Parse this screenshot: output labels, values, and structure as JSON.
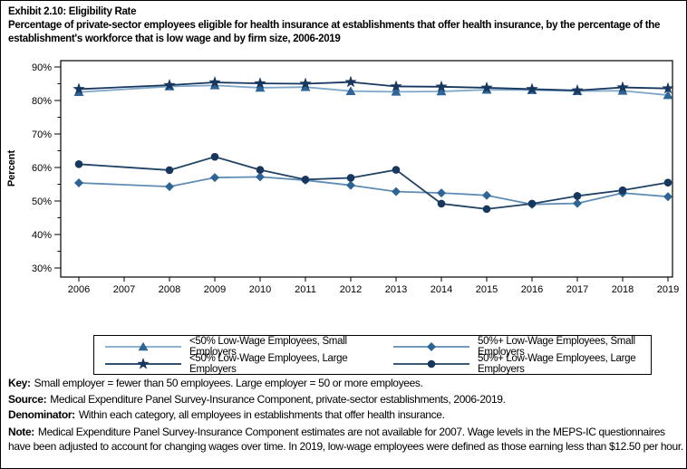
{
  "header": {
    "title": "Exhibit 2.10: Eligibility Rate",
    "subtitle": "Percentage of private-sector employees eligible for health insurance at establishments that offer health insurance, by the percentage of the establishment's workforce that is low wage and by firm size, 2006-2019"
  },
  "chart_data": {
    "type": "line",
    "title": "Eligibility Rate",
    "xlabel": "",
    "ylabel": "Percent",
    "ylim": [
      30,
      90
    ],
    "y_ticks": [
      30,
      40,
      50,
      60,
      70,
      80,
      90
    ],
    "y_tick_suffix": "%",
    "y_minor_tick_step": 5,
    "grid": false,
    "legend_position": "bottom",
    "axis_years": [
      2006,
      2007,
      2008,
      2009,
      2010,
      2011,
      2012,
      2013,
      2014,
      2015,
      2016,
      2017,
      2018,
      2019
    ],
    "missing_years": [
      2007
    ],
    "x": [
      2006,
      2008,
      2009,
      2010,
      2011,
      2012,
      2013,
      2014,
      2015,
      2016,
      2017,
      2018,
      2019
    ],
    "series": [
      {
        "name": "<50% Low-Wage Employees, Small Employers",
        "marker": "triangle",
        "marker_color": "#2E6496",
        "line_color": "#7EA6C8",
        "values": [
          82.5,
          84.2,
          84.5,
          83.8,
          84.0,
          82.8,
          82.6,
          82.7,
          83.2,
          83.1,
          82.8,
          82.9,
          81.6
        ]
      },
      {
        "name": "<50% Low-Wage Employees, Large Employers",
        "marker": "star",
        "marker_color": "#17375E",
        "line_color": "#17375E",
        "values": [
          83.4,
          84.6,
          85.4,
          85.1,
          85.0,
          85.5,
          84.2,
          84.1,
          83.8,
          83.4,
          83.0,
          83.9,
          83.6
        ]
      },
      {
        "name": "50%+ Low-Wage Employees, Small Employers",
        "marker": "diamond",
        "marker_color": "#2E6496",
        "line_color": "#5E8CB4",
        "values": [
          55.4,
          54.3,
          57.0,
          57.2,
          56.2,
          54.7,
          52.8,
          52.4,
          51.7,
          49.0,
          49.3,
          52.4,
          51.3
        ]
      },
      {
        "name": "50%+ Low-Wage Employees, Large Employers",
        "marker": "circle",
        "marker_color": "#17375E",
        "line_color": "#1F4265",
        "values": [
          61.0,
          59.2,
          63.2,
          59.3,
          56.4,
          56.9,
          59.3,
          49.2,
          47.6,
          49.2,
          51.5,
          53.2,
          55.5
        ]
      }
    ]
  },
  "legend": {
    "items": [
      {
        "label": "<50% Low-Wage Employees, Small Employers",
        "series": 0
      },
      {
        "label": "50%+ Low-Wage Employees, Small Employers",
        "series": 2
      },
      {
        "label": "<50% Low-Wage Employees, Large Employers",
        "series": 1
      },
      {
        "label": "50%+ Low-Wage Employees, Large Employers",
        "series": 3
      }
    ]
  },
  "notes": [
    {
      "label": "Key:",
      "text": "Small employer = fewer than 50 employees. Large employer = 50 or more employees."
    },
    {
      "label": "Source:",
      "text": "Medical Expenditure Panel Survey-Insurance Component, private-sector establishments, 2006-2019."
    },
    {
      "label": "Denominator:",
      "text": "Within each category, all employees in establishments that offer health insurance."
    },
    {
      "label": "Note:",
      "text": "Medical Expenditure Panel Survey-Insurance Component estimates are not available for 2007. Wage levels in the MEPS-IC questionnaires have been adjusted to account for changing wages over time. In 2019, low-wage employees were defined as those earning less than $12.50 per hour."
    }
  ]
}
